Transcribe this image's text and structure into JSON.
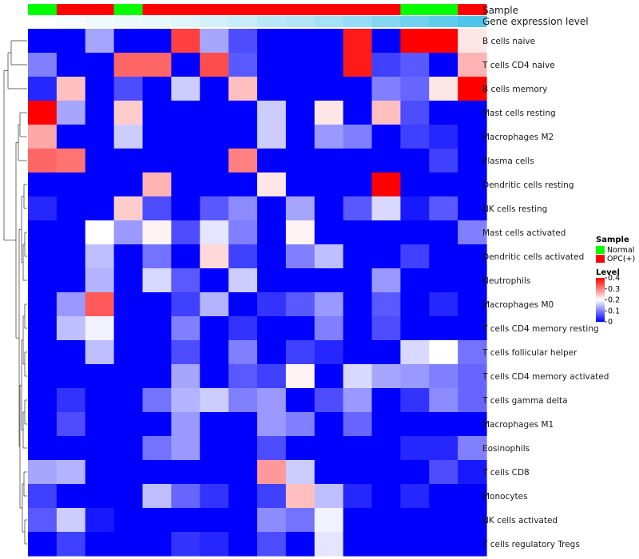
{
  "chart_data": {
    "type": "heatmap",
    "title": "",
    "annotation_labels": {
      "sample": "Sample",
      "gene_expression": "Gene expression level"
    },
    "columns_sample": [
      "Normal",
      "OPC(+)",
      "OPC(+)",
      "Normal",
      "OPC(+)",
      "OPC(+)",
      "OPC(+)",
      "OPC(+)",
      "OPC(+)",
      "OPC(+)",
      "OPC(+)",
      "OPC(+)",
      "OPC(+)",
      "Normal",
      "Normal",
      "OPC(+)"
    ],
    "columns_gene_expression": [
      0.0,
      0.05,
      0.08,
      0.1,
      0.13,
      0.18,
      0.25,
      0.32,
      0.4,
      0.45,
      0.52,
      0.6,
      0.7,
      0.8,
      0.9,
      1.0
    ],
    "rows": [
      "B cells naive",
      "T cells CD4 naive",
      "B cells memory",
      "Mast cells resting",
      "Macrophages M2",
      "Plasma cells",
      "Dendritic cells resting",
      "NK cells resting",
      "Mast cells activated",
      "Dendritic cells activated",
      "Neutrophils",
      "Macrophages M0",
      "T cells CD4 memory resting",
      "T cells follicular helper",
      "T cells CD4 memory activated",
      "T cells gamma delta",
      "Macrophages M1",
      "Eosinophils",
      "T cells CD8",
      "Monocytes",
      "NK cells activated",
      "T cells regulatory  Tregs"
    ],
    "values": [
      [
        0,
        0,
        0.13,
        0,
        0,
        0.35,
        0.13,
        0.06,
        0,
        0,
        0,
        0.38,
        0,
        0.4,
        0.4,
        0.22
      ],
      [
        0.1,
        0,
        0,
        0.32,
        0.32,
        0,
        0.34,
        0.07,
        0,
        0,
        0,
        0.38,
        0.05,
        0.07,
        0,
        0.26
      ],
      [
        0.03,
        0.25,
        0,
        0.06,
        0,
        0.16,
        0,
        0.25,
        0,
        0,
        0,
        0,
        0.1,
        0.08,
        0.22,
        0.4
      ],
      [
        0.4,
        0.13,
        0,
        0.24,
        0,
        0,
        0,
        0,
        0.16,
        0,
        0.22,
        0,
        0.25,
        0.06,
        0,
        0
      ],
      [
        0.27,
        0,
        0,
        0.16,
        0,
        0,
        0,
        0,
        0.16,
        0,
        0.12,
        0.1,
        0,
        0.05,
        0.03,
        0
      ],
      [
        0.32,
        0.31,
        0,
        0,
        0,
        0,
        0,
        0.3,
        0,
        0,
        0,
        0,
        0,
        0,
        0.05,
        0
      ],
      [
        0,
        0,
        0,
        0,
        0.26,
        0,
        0,
        0,
        0.22,
        0,
        0,
        0,
        0.4,
        0,
        0,
        0
      ],
      [
        0.03,
        0,
        0,
        0.24,
        0.06,
        0,
        0.07,
        0.11,
        0,
        0.13,
        0,
        0.07,
        0.17,
        0.02,
        0.07,
        0
      ],
      [
        0,
        0,
        0.2,
        0.12,
        0.21,
        0.06,
        0.18,
        0.1,
        0,
        0.21,
        0,
        0,
        0,
        0,
        0,
        0.1
      ],
      [
        0,
        0,
        0.15,
        0,
        0.09,
        0,
        0.23,
        0.05,
        0,
        0.1,
        0.15,
        0,
        0,
        0.05,
        0,
        0
      ],
      [
        0,
        0,
        0.14,
        0,
        0.17,
        0.07,
        0,
        0.16,
        0,
        0,
        0,
        0,
        0.12,
        0,
        0,
        0
      ],
      [
        0,
        0.12,
        0.33,
        0,
        0,
        0.05,
        0.14,
        0,
        0.04,
        0.07,
        0.12,
        0,
        0.07,
        0,
        0.03,
        0
      ],
      [
        0,
        0.15,
        0.19,
        0,
        0,
        0.1,
        0,
        0.04,
        0,
        0,
        0.1,
        0,
        0.06,
        0,
        0,
        0
      ],
      [
        0,
        0,
        0.15,
        0,
        0,
        0.06,
        0,
        0.1,
        0,
        0.05,
        0.03,
        0,
        0,
        0.17,
        0.2,
        0.09
      ],
      [
        0,
        0,
        0,
        0,
        0,
        0.13,
        0,
        0.07,
        0.05,
        0.21,
        0,
        0.17,
        0.13,
        0.12,
        0.1,
        0.08
      ],
      [
        0,
        0.04,
        0,
        0,
        0.09,
        0.14,
        0.16,
        0.1,
        0.12,
        0,
        0.06,
        0.12,
        0,
        0.04,
        0.11,
        0.08
      ],
      [
        0,
        0.06,
        0,
        0,
        0,
        0.12,
        0,
        0,
        0.12,
        0.1,
        0,
        0.08,
        0,
        0,
        0,
        0
      ],
      [
        0,
        0,
        0,
        0,
        0.09,
        0.12,
        0,
        0,
        0.06,
        0,
        0,
        0,
        0,
        0.03,
        0.03,
        0.1
      ],
      [
        0.13,
        0.14,
        0,
        0,
        0,
        0,
        0,
        0,
        0.28,
        0.16,
        0,
        0,
        0,
        0,
        0.06,
        0.02
      ],
      [
        0.05,
        0,
        0,
        0,
        0.15,
        0.08,
        0.04,
        0,
        0.05,
        0.25,
        0.15,
        0.03,
        0,
        0.03,
        0,
        0
      ],
      [
        0.07,
        0.16,
        0.02,
        0,
        0,
        0,
        0,
        0,
        0.11,
        0.09,
        0.19,
        0,
        0,
        0,
        0,
        0
      ],
      [
        0,
        0.05,
        0,
        0,
        0,
        0.04,
        0.03,
        0,
        0.06,
        0,
        0.18,
        0,
        0,
        0,
        0,
        0
      ]
    ],
    "color_scale": {
      "min": 0,
      "max": 0.4,
      "low": "#0000ff",
      "mid": "#ffffff",
      "high": "#ff0000"
    },
    "legend": {
      "sample_title": "Sample",
      "sample_entries": [
        {
          "label": "Normal",
          "color": "#00ff00"
        },
        {
          "label": "OPC(+)",
          "color": "#ff0000"
        }
      ],
      "level_title": "Level",
      "level_ticks": [
        "0.4",
        "0.3",
        "0.2",
        "0.1",
        "0"
      ],
      "level_tick_values": [
        0.4,
        0.3,
        0.2,
        0.1,
        0
      ]
    },
    "dendrogram": "left-rows"
  }
}
